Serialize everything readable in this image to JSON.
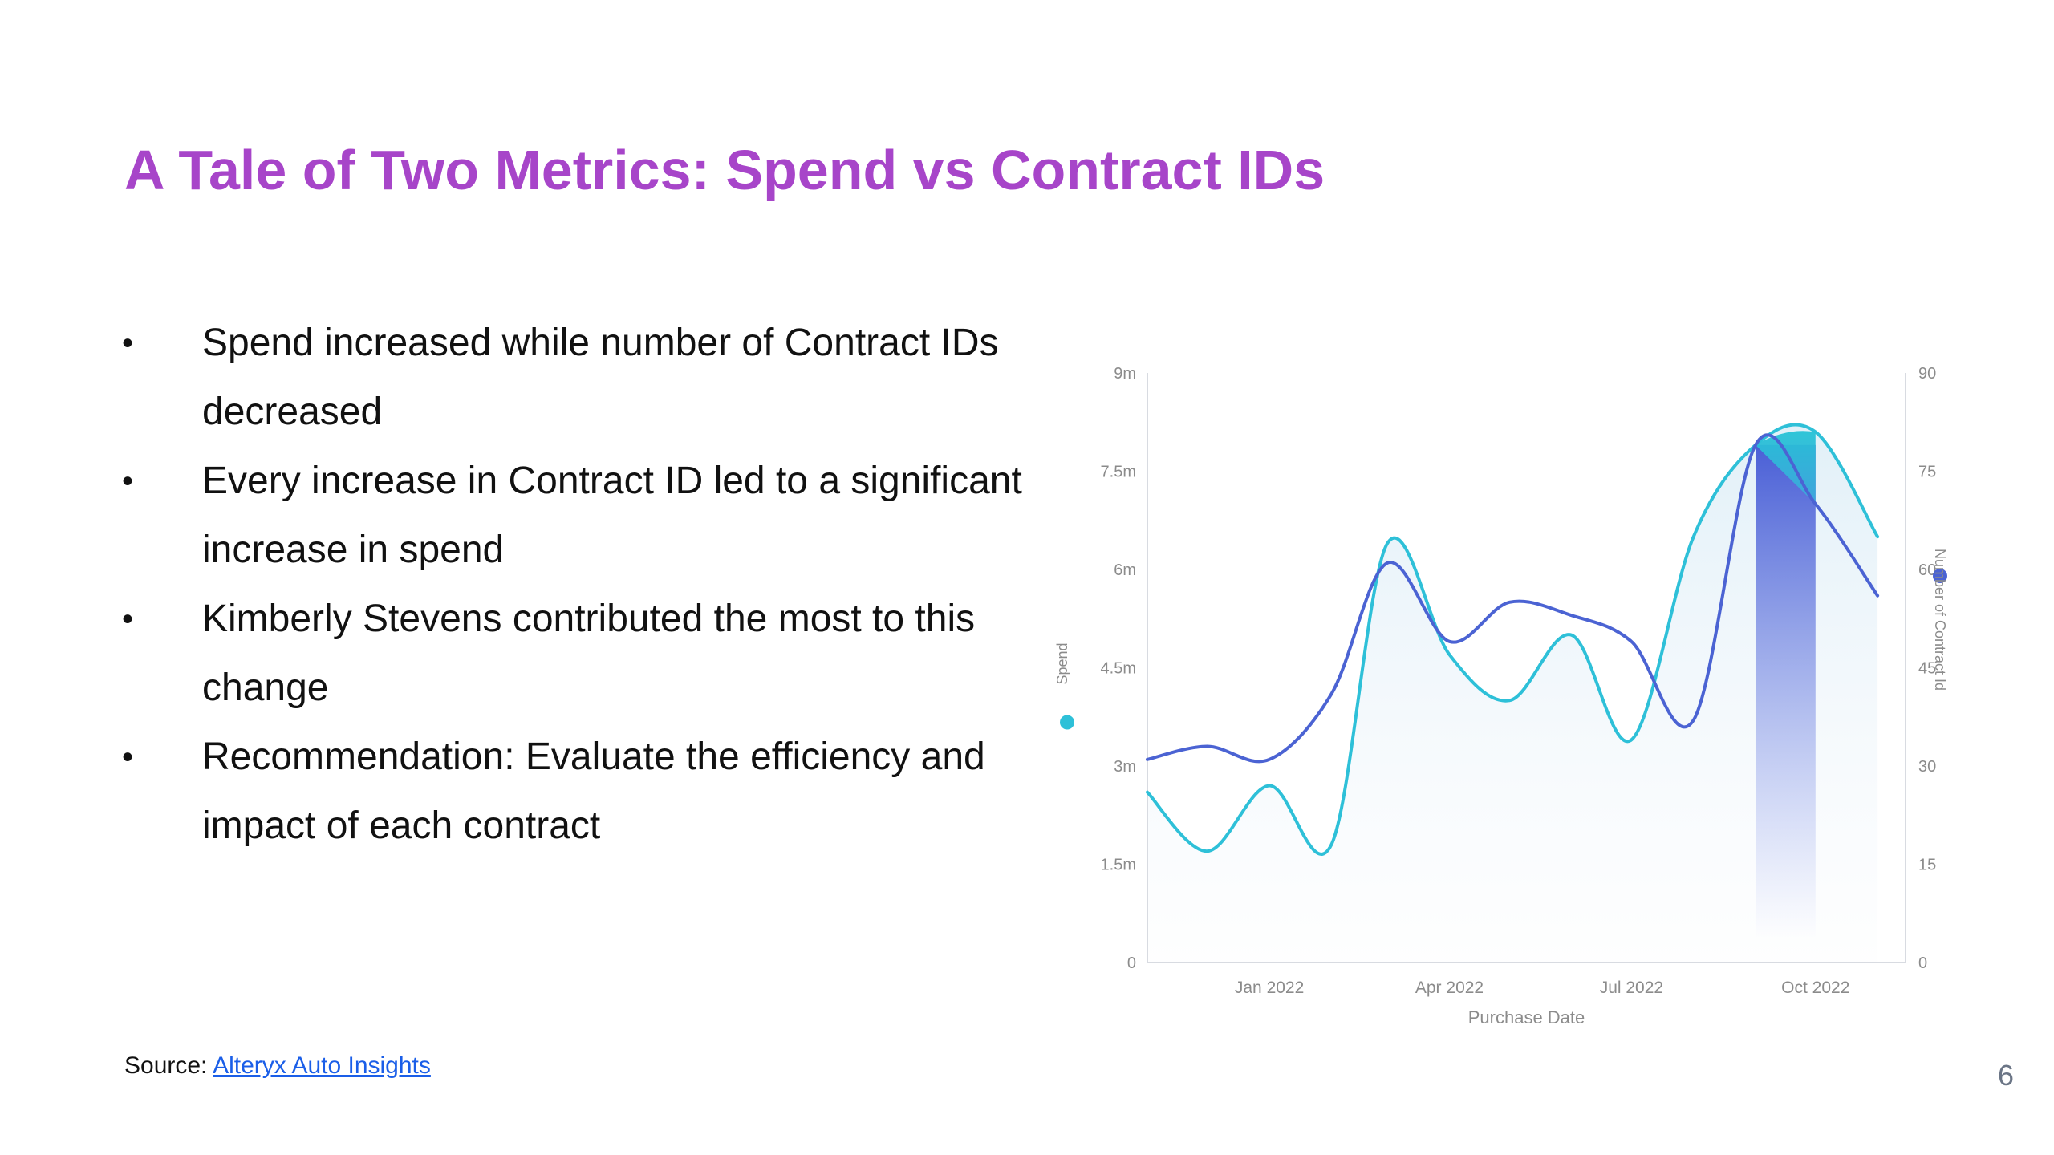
{
  "slide": {
    "title": "A Tale of Two Metrics: Spend vs Contract IDs",
    "bullets": [
      "Spend increased while number of Contract IDs decreased",
      "Every increase in Contract ID led to a significant increase in spend",
      "Kimberly Stevens contributed the most to this change",
      "Recommendation: Evaluate the efficiency and impact of each contract"
    ],
    "bullet_glyph": "•",
    "source_label": "Source: ",
    "source_link": "Alteryx Auto Insights",
    "page_number": "6"
  },
  "chart_data": {
    "type": "line",
    "xlabel": "Purchase Date",
    "x_ticks": [
      "Jan 2022",
      "Apr 2022",
      "Jul 2022",
      "Oct 2022"
    ],
    "x_tick_dates": [
      "2022-01-01",
      "2022-04-01",
      "2022-07-01",
      "2022-10-01"
    ],
    "y_left": {
      "label": "Spend",
      "ticks": [
        "0",
        "1.5m",
        "3m",
        "4.5m",
        "6m",
        "7.5m",
        "9m"
      ],
      "range": [
        0,
        9000000
      ]
    },
    "y_right": {
      "label": "Number of Contract Id",
      "ticks": [
        "0",
        "15",
        "30",
        "45",
        "60",
        "75",
        "90"
      ],
      "range": [
        0,
        90
      ]
    },
    "grid": false,
    "series": [
      {
        "name": "Spend",
        "axis": "left",
        "color": "#2ec0d8",
        "x": [
          "2021-11-01",
          "2021-12-01",
          "2022-01-01",
          "2022-02-01",
          "2022-03-01",
          "2022-04-01",
          "2022-05-01",
          "2022-06-01",
          "2022-07-01",
          "2022-08-01",
          "2022-09-01",
          "2022-10-01",
          "2022-11-01"
        ],
        "values": [
          2600000,
          1700000,
          2700000,
          1800000,
          6400000,
          4700000,
          4000000,
          5000000,
          3400000,
          6500000,
          7900000,
          8100000,
          6500000
        ]
      },
      {
        "name": "Number of Contract Id",
        "axis": "right",
        "color": "#4b63d3",
        "x": [
          "2021-11-01",
          "2021-12-01",
          "2022-01-01",
          "2022-02-01",
          "2022-03-01",
          "2022-04-01",
          "2022-05-01",
          "2022-06-01",
          "2022-07-01",
          "2022-08-01",
          "2022-09-01",
          "2022-10-01",
          "2022-11-01"
        ],
        "values": [
          31,
          33,
          31,
          41,
          61,
          49,
          55,
          53,
          49,
          37,
          79,
          70,
          56
        ]
      }
    ],
    "highlight": {
      "from": "2022-09-01",
      "to": "2022-10-01"
    }
  }
}
